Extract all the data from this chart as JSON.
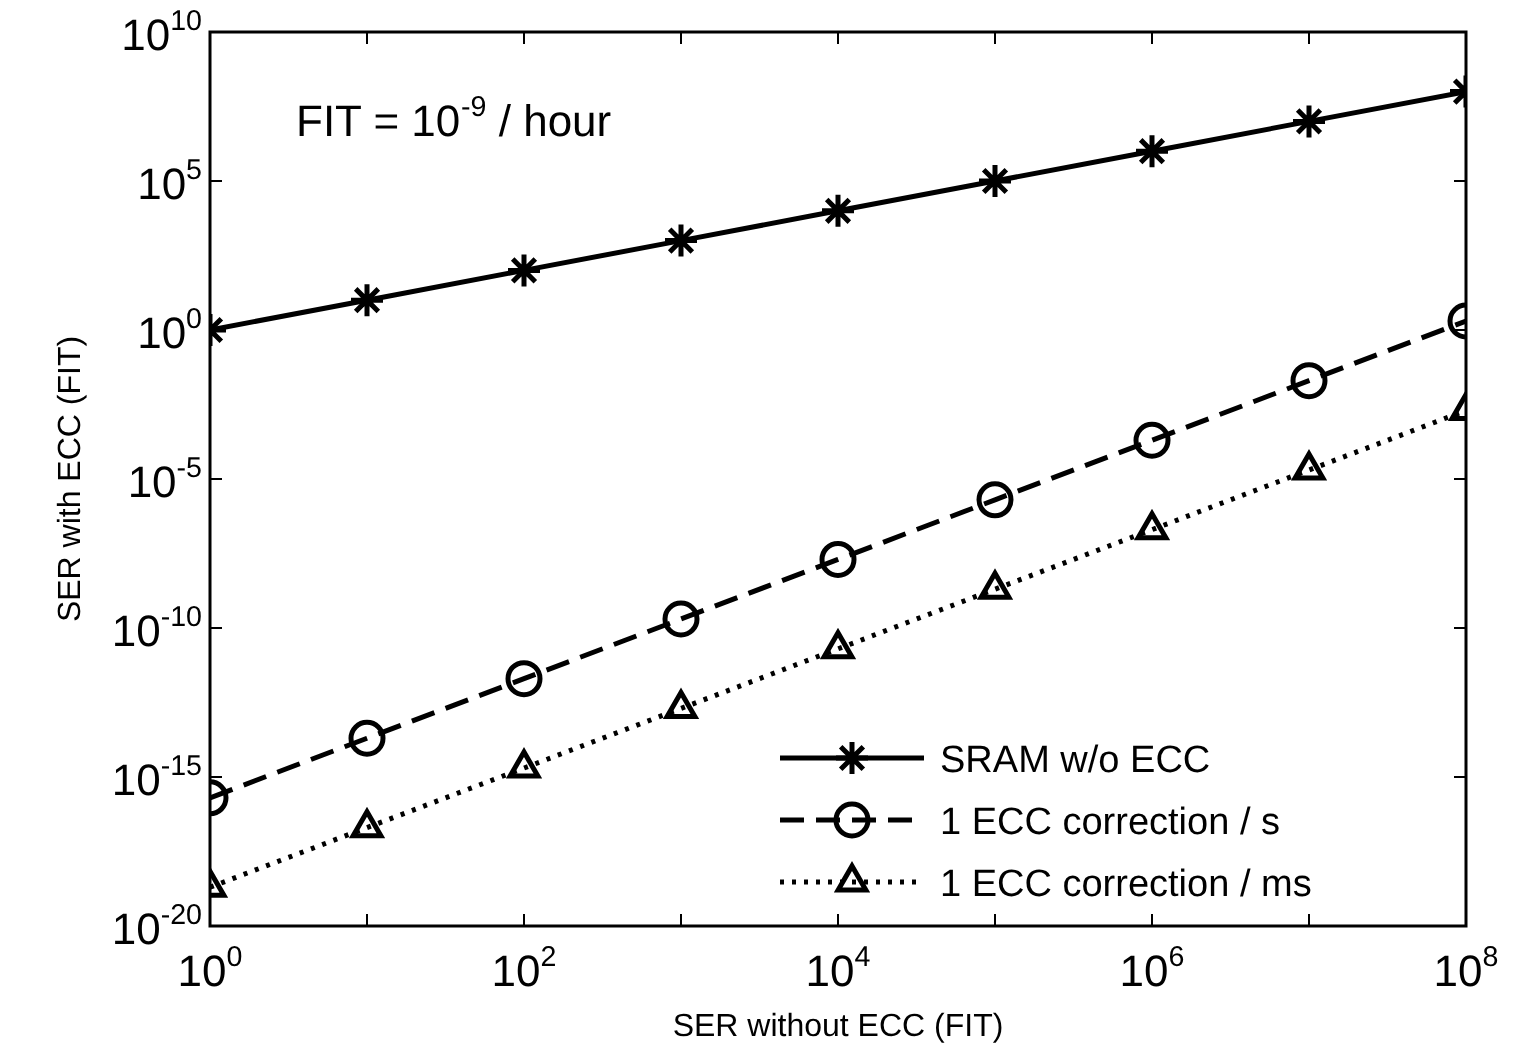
{
  "chart_data": {
    "type": "line",
    "xlabel": "SER without ECC (FIT)",
    "ylabel": "SER with ECC (FIT)",
    "log": "xy",
    "grid": false,
    "legend": "bottom right",
    "annotations": [
      "FIT = 10$^{-9}$ / hour"
    ],
    "x": [
      1,
      10,
      100,
      1000,
      10000,
      100000,
      1000000,
      10000000,
      100000000
    ],
    "xlim": [
      1,
      100000000
    ],
    "xticks": [
      {
        "value": 1,
        "label": "10$^{0}$"
      },
      {
        "value": 10,
        "label": null
      },
      {
        "value": 100,
        "label": "10$^{2}$"
      },
      {
        "value": 1000,
        "label": null
      },
      {
        "value": 10000,
        "label": "10$^{4}$"
      },
      {
        "value": 100000,
        "label": null
      },
      {
        "value": 1000000,
        "label": "10$^{6}$"
      },
      {
        "value": 10000000,
        "label": null
      },
      {
        "value": 100000000,
        "label": "10$^{8}$"
      }
    ],
    "ylim": [
      1e-20,
      10000000000.0
    ],
    "yticks": [
      {
        "value": 1e-20,
        "label": "10$^{-20}$"
      },
      {
        "value": 1e-15,
        "label": "10$^{-15}$"
      },
      {
        "value": 1e-10,
        "label": "10$^{-10}$"
      },
      {
        "value": 1e-05,
        "label": "10$^{-5}$"
      },
      {
        "value": 1,
        "label": "10$^{0}$"
      },
      {
        "value": 100000,
        "label": "10$^{5}$"
      },
      {
        "value": 10000000000.0,
        "label": "10$^{10}$"
      }
    ],
    "series": [
      {
        "name": "SRAM w/o ECC",
        "color": "#000000",
        "marker": "cross",
        "line_style": "solid",
        "values": [
          1,
          10,
          100,
          1000,
          10000,
          100000,
          1000000,
          10000000,
          100000000
        ]
      },
      {
        "name": "1 ECC correction / s",
        "color": "#000000",
        "marker": "circle",
        "line_style": "dashed",
        "values": [
          2e-16,
          2e-14,
          2e-12,
          2e-10,
          2e-08,
          2e-06,
          0.0002,
          0.02,
          2
        ]
      },
      {
        "name": "1 ECC correction / ms",
        "color": "#000000",
        "marker": "triangle",
        "line_style": "dotted",
        "values": [
          2e-19,
          2e-17,
          2e-15,
          2e-13,
          2e-11,
          2e-09,
          2e-07,
          2e-05,
          0.002
        ]
      }
    ]
  }
}
